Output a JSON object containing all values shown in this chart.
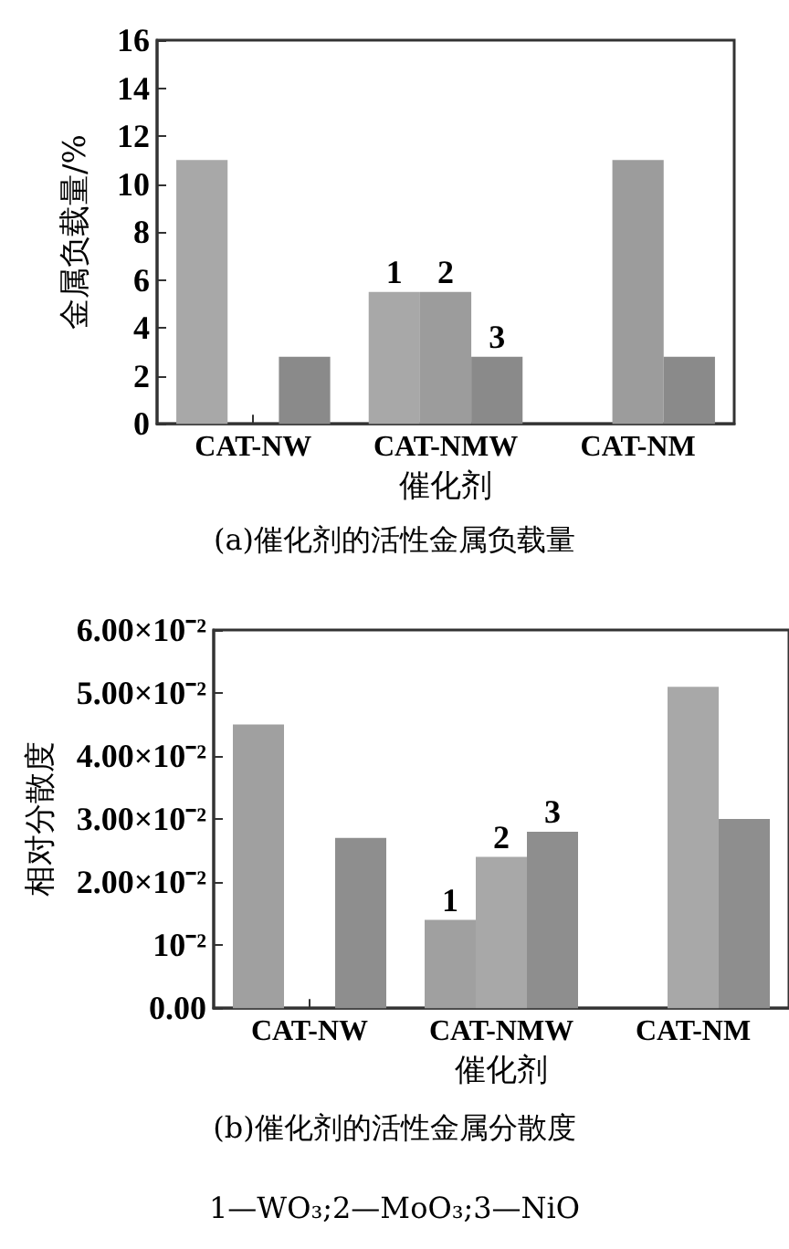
{
  "chart_data": [
    {
      "type": "bar",
      "title": "(a)催化剂的活性金属负载量",
      "xlabel": "催化剂",
      "ylabel": "金属负载量/%",
      "categories": [
        "CAT-NW",
        "CAT-NMW",
        "CAT-NM"
      ],
      "series": [
        {
          "name": "1",
          "color": "#a8a8a8",
          "values": [
            11,
            5.5,
            null
          ]
        },
        {
          "name": "2",
          "color": "#9c9c9c",
          "values": [
            null,
            5.5,
            11
          ]
        },
        {
          "name": "3",
          "color": "#8a8a8a",
          "values": [
            2.8,
            2.8,
            2.8
          ]
        }
      ],
      "ylim": [
        0,
        16
      ],
      "yticks": [
        0,
        2,
        4,
        6,
        8,
        10,
        12,
        14,
        16
      ],
      "grid": false
    },
    {
      "type": "bar",
      "title": "(b)催化剂的活性金属分散度",
      "xlabel": "催化剂",
      "ylabel": "相对分散度",
      "categories": [
        "CAT-NW",
        "CAT-NMW",
        "CAT-NM"
      ],
      "series": [
        {
          "name": "1",
          "color": "#a0a0a0",
          "values": [
            0.045,
            0.014,
            null
          ]
        },
        {
          "name": "2",
          "color": "#a8a8a8",
          "values": [
            null,
            0.024,
            0.051
          ]
        },
        {
          "name": "3",
          "color": "#8e8e8e",
          "values": [
            0.027,
            0.028,
            0.03
          ]
        }
      ],
      "ylim": [
        0,
        0.06
      ],
      "yticks": [
        {
          "value": 0,
          "label": "0.00"
        },
        {
          "value": 0.01,
          "label": "10⁻²"
        },
        {
          "value": 0.02,
          "label": "2.00×10⁻²"
        },
        {
          "value": 0.03,
          "label": "3.00×10⁻²"
        },
        {
          "value": 0.04,
          "label": "4.00×10⁻²"
        },
        {
          "value": 0.05,
          "label": "5.00×10⁻²"
        },
        {
          "value": 0.06,
          "label": "6.00×10⁻²"
        }
      ],
      "grid": false,
      "annotations": [
        "1—WO₃;2—MoO₃;3—NiO"
      ]
    }
  ]
}
